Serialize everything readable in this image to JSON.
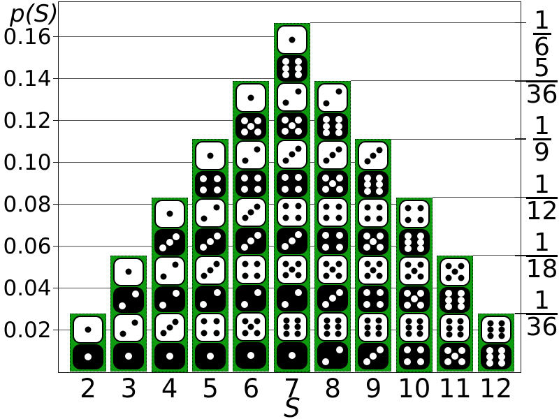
{
  "chart_data": {
    "type": "bar",
    "ylabel": "p(S)",
    "xlabel": "S",
    "categories": [
      2,
      3,
      4,
      5,
      6,
      7,
      8,
      9,
      10,
      11,
      12
    ],
    "x_tick_labels": [
      "2",
      "3",
      "4",
      "5",
      "6",
      "7",
      "8",
      "9",
      "10",
      "11",
      "12"
    ],
    "counts": [
      1,
      2,
      3,
      4,
      5,
      6,
      5,
      4,
      3,
      2,
      1
    ],
    "values": [
      0.027778,
      0.055556,
      0.083333,
      0.111111,
      0.138889,
      0.166667,
      0.138889,
      0.111111,
      0.083333,
      0.055556,
      0.027778
    ],
    "value_fractions": [
      "1/36",
      "2/36",
      "3/36",
      "4/36",
      "5/36",
      "6/36",
      "5/36",
      "4/36",
      "3/36",
      "2/36",
      "1/36"
    ],
    "ylim": [
      0,
      0.1767
    ],
    "grid": true,
    "legend": "none",
    "left_ticks": [
      {
        "value": 0.02,
        "label": "0.02"
      },
      {
        "value": 0.04,
        "label": "0.04"
      },
      {
        "value": 0.06,
        "label": "0.06"
      },
      {
        "value": 0.08,
        "label": "0.08"
      },
      {
        "value": 0.1,
        "label": "0.10"
      },
      {
        "value": 0.12,
        "label": "0.12"
      },
      {
        "value": 0.14,
        "label": "0.14"
      },
      {
        "value": 0.16,
        "label": "0.16"
      }
    ],
    "right_ticks": [
      {
        "value": 0.166667,
        "num": "1",
        "den": "6"
      },
      {
        "value": 0.138889,
        "num": "5",
        "den": "36"
      },
      {
        "value": 0.111111,
        "num": "1",
        "den": "9"
      },
      {
        "value": 0.083333,
        "num": "1",
        "den": "12"
      },
      {
        "value": 0.055556,
        "num": "1",
        "den": "18"
      },
      {
        "value": 0.027778,
        "num": "1",
        "den": "36"
      }
    ],
    "pair_order": [
      "white",
      "black"
    ],
    "dice_stacks": {
      "2": [
        [
          1,
          1
        ]
      ],
      "3": [
        [
          1,
          2
        ],
        [
          2,
          1
        ]
      ],
      "4": [
        [
          1,
          3
        ],
        [
          2,
          2
        ],
        [
          3,
          1
        ]
      ],
      "5": [
        [
          1,
          4
        ],
        [
          2,
          3
        ],
        [
          3,
          2
        ],
        [
          4,
          1
        ]
      ],
      "6": [
        [
          1,
          5
        ],
        [
          2,
          4
        ],
        [
          3,
          3
        ],
        [
          4,
          2
        ],
        [
          5,
          1
        ]
      ],
      "7": [
        [
          1,
          6
        ],
        [
          2,
          5
        ],
        [
          3,
          4
        ],
        [
          4,
          3
        ],
        [
          5,
          2
        ],
        [
          6,
          1
        ]
      ],
      "8": [
        [
          2,
          6
        ],
        [
          3,
          5
        ],
        [
          4,
          4
        ],
        [
          5,
          3
        ],
        [
          6,
          2
        ]
      ],
      "9": [
        [
          3,
          6
        ],
        [
          4,
          5
        ],
        [
          5,
          4
        ],
        [
          6,
          3
        ]
      ],
      "10": [
        [
          4,
          6
        ],
        [
          5,
          5
        ],
        [
          6,
          4
        ]
      ],
      "11": [
        [
          5,
          6
        ],
        [
          6,
          5
        ]
      ],
      "12": [
        [
          6,
          6
        ]
      ]
    },
    "colors": {
      "bar_fill": "#0f9b0f",
      "die_white": "#ffffff",
      "die_black": "#000000",
      "pip_on_white": "#000000",
      "pip_on_black": "#ffffff",
      "gridline": "#4d4d4d",
      "axis": "#1a1a1a",
      "text": "#000000",
      "background": "#ffffff"
    }
  }
}
